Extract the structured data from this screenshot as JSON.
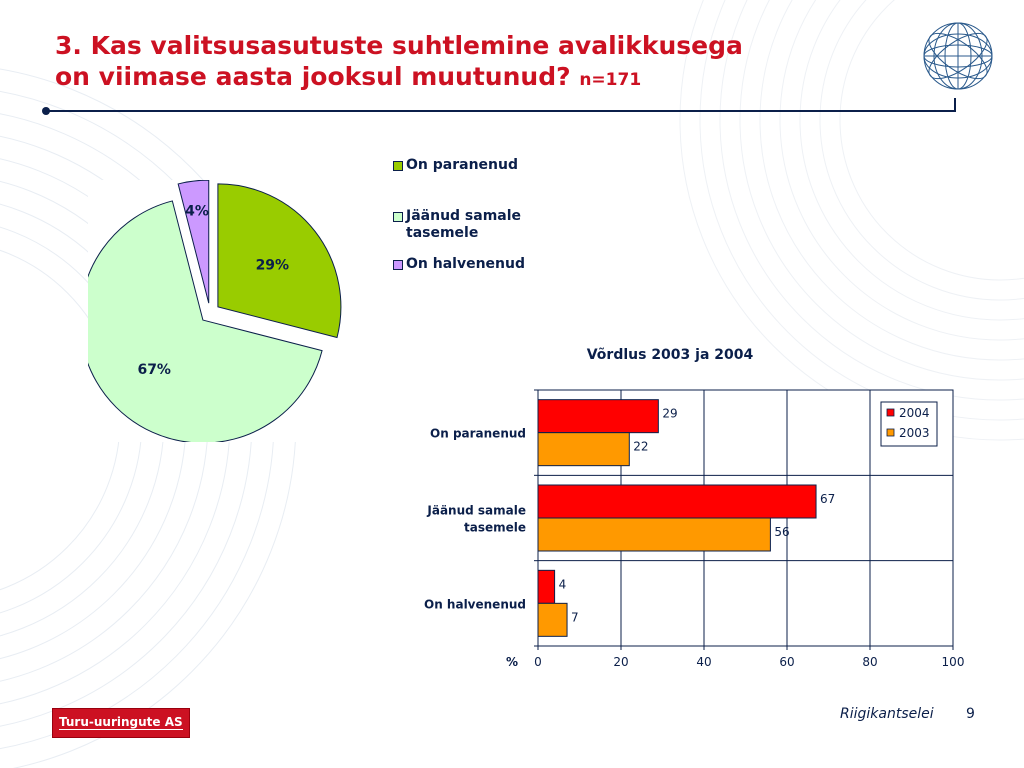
{
  "slide": {
    "title_line1": "3. Kas valitsusasutuste suhtlemine avalikkusega",
    "title_line2": "on viimase aasta jooksul muutunud?",
    "sample_size": "n=171",
    "brand": "Turu-uuringute AS",
    "org": "Riigikantselei",
    "page_number": "9",
    "title_color": "#cc1122",
    "text_color": "#0b1f4a",
    "logo_icon": "globe-mesh-icon"
  },
  "chart_data": [
    {
      "type": "pie",
      "categories": [
        "On paranenud",
        "Jäänud samale tasemele",
        "On halvenenud"
      ],
      "values": [
        29,
        67,
        4
      ],
      "labels": [
        "29%",
        "67%",
        "4%"
      ],
      "colors": [
        "#99cc00",
        "#ccffcc",
        "#cc99ff"
      ],
      "exploded": true,
      "legend": {
        "placement": "right",
        "entries": [
          "On paranenud",
          "Jäänud samale tasemele",
          "On halvenenud"
        ],
        "entry_lines": [
          [
            "On paranenud"
          ],
          [
            "Jäänud samale",
            "tasemele"
          ],
          [
            "On halvenenud"
          ]
        ]
      }
    },
    {
      "type": "bar",
      "orientation": "horizontal",
      "title": "Võrdlus 2003 ja 2004",
      "categories": [
        "On paranenud",
        "Jäänud samale tasemele",
        "On halvenenud"
      ],
      "category_lines": [
        [
          "On paranenud"
        ],
        [
          "Jäänud samale",
          "tasemele"
        ],
        [
          "On halvenenud"
        ]
      ],
      "series": [
        {
          "name": "2004",
          "values": [
            29,
            67,
            4
          ],
          "color": "#ff0000"
        },
        {
          "name": "2003",
          "values": [
            22,
            56,
            7
          ],
          "color": "#ff9900"
        }
      ],
      "xlabel": "%",
      "xlim": [
        0,
        100
      ],
      "xticks": [
        0,
        20,
        40,
        60,
        80,
        100
      ],
      "grid": true,
      "legend": {
        "placement": "top-right",
        "entries": [
          "2004",
          "2003"
        ]
      }
    }
  ]
}
